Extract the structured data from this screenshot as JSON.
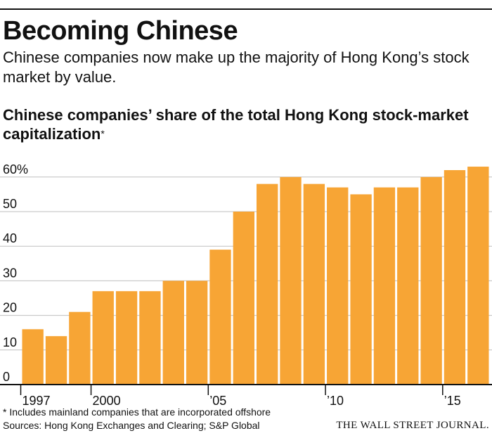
{
  "header": {
    "headline": "Becoming Chinese",
    "dek": "Chinese companies now make up the majority of Hong Kong’s stock market by value."
  },
  "chart_data": {
    "type": "bar",
    "title": "Chinese companies’ share of the total Hong Kong stock-market capitalization",
    "title_suffix": "*",
    "categories": [
      "1997",
      "1998",
      "1999",
      "2000",
      "2001",
      "2002",
      "2003",
      "2004",
      "2005",
      "2006",
      "2007",
      "2008",
      "2009",
      "2010",
      "2011",
      "2012",
      "2013",
      "2014",
      "2015",
      "2016"
    ],
    "values": [
      16,
      14,
      21,
      27,
      27,
      27,
      30,
      30,
      39,
      50,
      58,
      60,
      58,
      57,
      55,
      57,
      57,
      60,
      62,
      63
    ],
    "ylim": [
      0,
      65
    ],
    "yticks": [
      0,
      10,
      20,
      30,
      40,
      50,
      60
    ],
    "ytick_labels": [
      "0",
      "10",
      "20",
      "30",
      "40",
      "50",
      "60%"
    ],
    "xtick_labels": [
      {
        "category": "1997",
        "label": "1997"
      },
      {
        "category": "2000",
        "label": "2000"
      },
      {
        "category": "2005",
        "label": "’05"
      },
      {
        "category": "2010",
        "label": "’10"
      },
      {
        "category": "2015",
        "label": "’15"
      }
    ],
    "grid": true,
    "bar_color": "#F7A535",
    "grid_color": "#BFBFBF",
    "axis_color": "#111111"
  },
  "footer": {
    "note": "* Includes mainland companies that are incorporated offshore",
    "source": "Sources: Hong Kong Exchanges and Clearing; S&P Global",
    "brand": "THE WALL STREET JOURNAL."
  }
}
